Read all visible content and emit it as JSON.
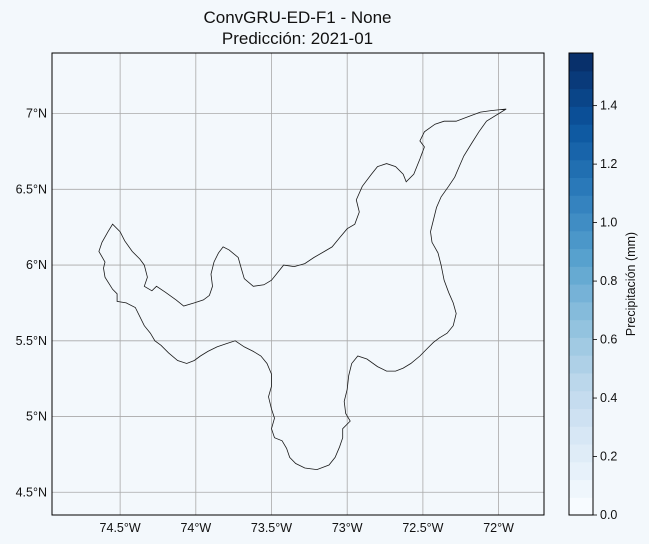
{
  "title_line1": "ConvGRU-ED-F1 - None",
  "title_line2": "Predicción: 2021-01",
  "map": {
    "lon_ticks": [
      {
        "value": -74.5,
        "label": "74.5°W"
      },
      {
        "value": -74.0,
        "label": "74°W"
      },
      {
        "value": -73.5,
        "label": "73.5°W"
      },
      {
        "value": -73.0,
        "label": "73°W"
      },
      {
        "value": -72.5,
        "label": "72.5°W"
      },
      {
        "value": -72.0,
        "label": "72°W"
      }
    ],
    "lat_ticks": [
      {
        "value": 7.0,
        "label": "7°N"
      },
      {
        "value": 6.5,
        "label": "6.5°N"
      },
      {
        "value": 6.0,
        "label": "6°N"
      },
      {
        "value": 5.5,
        "label": "5.5°N"
      },
      {
        "value": 5.0,
        "label": "5°N"
      },
      {
        "value": 4.5,
        "label": "4.5°N"
      }
    ],
    "lon_range": [
      -74.95,
      -71.7
    ],
    "lat_range": [
      4.35,
      7.4
    ],
    "region_outline_lonlat": [
      [
        -74.52,
        5.76
      ],
      [
        -74.52,
        5.81
      ],
      [
        -74.55,
        5.84
      ],
      [
        -74.6,
        5.92
      ],
      [
        -74.61,
        5.98
      ],
      [
        -74.6,
        6.02
      ],
      [
        -74.64,
        6.09
      ],
      [
        -74.62,
        6.15
      ],
      [
        -74.58,
        6.22
      ],
      [
        -74.55,
        6.27
      ],
      [
        -74.5,
        6.22
      ],
      [
        -74.47,
        6.16
      ],
      [
        -74.42,
        6.09
      ],
      [
        -74.37,
        6.04
      ],
      [
        -74.34,
        6.0
      ],
      [
        -74.32,
        5.92
      ],
      [
        -74.34,
        5.86
      ],
      [
        -74.29,
        5.83
      ],
      [
        -74.26,
        5.86
      ],
      [
        -74.2,
        5.82
      ],
      [
        -74.13,
        5.77
      ],
      [
        -74.08,
        5.73
      ],
      [
        -74.01,
        5.75
      ],
      [
        -73.95,
        5.77
      ],
      [
        -73.91,
        5.8
      ],
      [
        -73.89,
        5.86
      ],
      [
        -73.9,
        5.94
      ],
      [
        -73.88,
        6.02
      ],
      [
        -73.85,
        6.08
      ],
      [
        -73.82,
        6.12
      ],
      [
        -73.78,
        6.1
      ],
      [
        -73.72,
        6.05
      ],
      [
        -73.7,
        5.98
      ],
      [
        -73.68,
        5.91
      ],
      [
        -73.62,
        5.86
      ],
      [
        -73.55,
        5.87
      ],
      [
        -73.5,
        5.9
      ],
      [
        -73.46,
        5.95
      ],
      [
        -73.42,
        6.0
      ],
      [
        -73.35,
        5.99
      ],
      [
        -73.28,
        6.01
      ],
      [
        -73.22,
        6.05
      ],
      [
        -73.15,
        6.09
      ],
      [
        -73.1,
        6.12
      ],
      [
        -73.05,
        6.18
      ],
      [
        -73.0,
        6.24
      ],
      [
        -72.95,
        6.27
      ],
      [
        -72.92,
        6.35
      ],
      [
        -72.94,
        6.43
      ],
      [
        -72.9,
        6.52
      ],
      [
        -72.84,
        6.6
      ],
      [
        -72.8,
        6.65
      ],
      [
        -72.74,
        6.67
      ],
      [
        -72.68,
        6.65
      ],
      [
        -72.63,
        6.6
      ],
      [
        -72.61,
        6.55
      ],
      [
        -72.56,
        6.6
      ],
      [
        -72.52,
        6.7
      ],
      [
        -72.49,
        6.78
      ],
      [
        -72.52,
        6.82
      ],
      [
        -72.49,
        6.88
      ],
      [
        -72.42,
        6.93
      ],
      [
        -72.36,
        6.95
      ],
      [
        -72.28,
        6.95
      ],
      [
        -72.2,
        6.98
      ],
      [
        -72.12,
        7.01
      ],
      [
        -72.05,
        7.02
      ],
      [
        -71.95,
        7.03
      ],
      [
        -72.08,
        6.95
      ],
      [
        -72.13,
        6.88
      ],
      [
        -72.18,
        6.8
      ],
      [
        -72.23,
        6.72
      ],
      [
        -72.26,
        6.65
      ],
      [
        -72.29,
        6.58
      ],
      [
        -72.33,
        6.52
      ],
      [
        -72.38,
        6.45
      ],
      [
        -72.41,
        6.38
      ],
      [
        -72.43,
        6.3
      ],
      [
        -72.45,
        6.22
      ],
      [
        -72.44,
        6.15
      ],
      [
        -72.4,
        6.08
      ],
      [
        -72.38,
        6.0
      ],
      [
        -72.36,
        5.9
      ],
      [
        -72.33,
        5.82
      ],
      [
        -72.3,
        5.75
      ],
      [
        -72.28,
        5.68
      ],
      [
        -72.3,
        5.6
      ],
      [
        -72.34,
        5.55
      ],
      [
        -72.39,
        5.52
      ],
      [
        -72.43,
        5.49
      ],
      [
        -72.47,
        5.45
      ],
      [
        -72.52,
        5.4
      ],
      [
        -72.58,
        5.35
      ],
      [
        -72.63,
        5.32
      ],
      [
        -72.68,
        5.3
      ],
      [
        -72.74,
        5.3
      ],
      [
        -72.8,
        5.33
      ],
      [
        -72.87,
        5.38
      ],
      [
        -72.93,
        5.4
      ],
      [
        -72.97,
        5.35
      ],
      [
        -72.99,
        5.27
      ],
      [
        -73.0,
        5.18
      ],
      [
        -73.02,
        5.1
      ],
      [
        -73.01,
        5.02
      ],
      [
        -72.98,
        4.97
      ],
      [
        -73.03,
        4.92
      ],
      [
        -73.03,
        4.86
      ],
      [
        -73.05,
        4.8
      ],
      [
        -73.08,
        4.73
      ],
      [
        -73.12,
        4.68
      ],
      [
        -73.2,
        4.65
      ],
      [
        -73.28,
        4.66
      ],
      [
        -73.34,
        4.69
      ],
      [
        -73.38,
        4.73
      ],
      [
        -73.4,
        4.79
      ],
      [
        -73.43,
        4.84
      ],
      [
        -73.48,
        4.86
      ],
      [
        -73.5,
        4.92
      ],
      [
        -73.48,
        4.99
      ],
      [
        -73.5,
        5.05
      ],
      [
        -73.52,
        5.13
      ],
      [
        -73.5,
        5.2
      ],
      [
        -73.5,
        5.28
      ],
      [
        -73.53,
        5.35
      ],
      [
        -73.57,
        5.4
      ],
      [
        -73.62,
        5.43
      ],
      [
        -73.68,
        5.46
      ],
      [
        -73.74,
        5.5
      ],
      [
        -73.8,
        5.48
      ],
      [
        -73.86,
        5.46
      ],
      [
        -73.92,
        5.43
      ],
      [
        -73.97,
        5.4
      ],
      [
        -74.01,
        5.37
      ],
      [
        -74.06,
        5.35
      ],
      [
        -74.12,
        5.37
      ],
      [
        -74.18,
        5.42
      ],
      [
        -74.23,
        5.47
      ],
      [
        -74.27,
        5.5
      ],
      [
        -74.3,
        5.55
      ],
      [
        -74.34,
        5.6
      ],
      [
        -74.37,
        5.66
      ],
      [
        -74.4,
        5.72
      ],
      [
        -74.46,
        5.75
      ],
      [
        -74.52,
        5.76
      ]
    ]
  },
  "colorbar": {
    "label": "Precipitación (mm)",
    "min": 0.0,
    "max": 1.58,
    "levels": 26,
    "ticks": [
      {
        "value": 0.0,
        "label": "0.0"
      },
      {
        "value": 0.2,
        "label": "0.2"
      },
      {
        "value": 0.4,
        "label": "0.4"
      },
      {
        "value": 0.6,
        "label": "0.6"
      },
      {
        "value": 0.8,
        "label": "0.8"
      },
      {
        "value": 1.0,
        "label": "1.0"
      },
      {
        "value": 1.2,
        "label": "1.2"
      },
      {
        "value": 1.4,
        "label": "1.4"
      }
    ],
    "cmap_stops": [
      "#f7fbff",
      "#dbe9f6",
      "#bad6eb",
      "#89bedc",
      "#539ecd",
      "#2b7bba",
      "#0b559f",
      "#08306b"
    ]
  }
}
